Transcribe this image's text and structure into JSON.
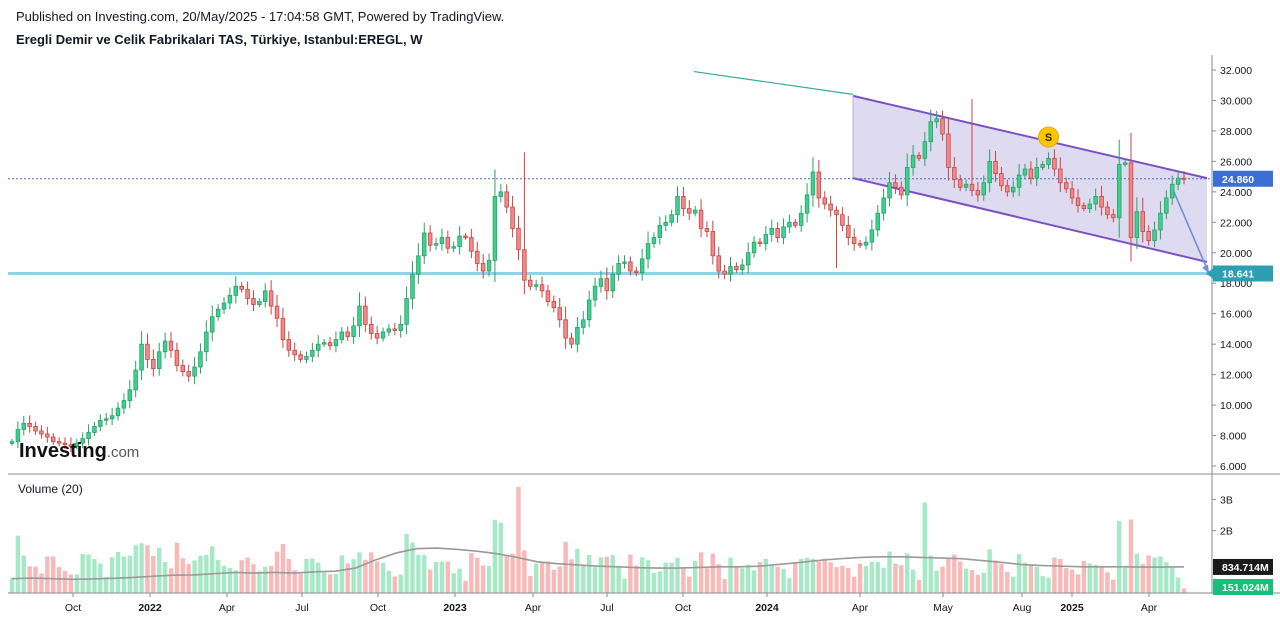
{
  "header": {
    "published_line": "Published on Investing.com, 20/May/2025 - 17:04:58 GMT, Powered by TradingView.",
    "instrument_line": "Eregli Demir ve Celik Fabrikalari TAS, Türkiye, Istanbul:EREGL, W"
  },
  "logo": {
    "main": "Investing",
    "suffix": ".com"
  },
  "colors": {
    "up_candle": "#26a269",
    "up_candle_fill": "#3fcf8e",
    "down_candle": "#c94444",
    "down_candle_fill": "#f08a8a",
    "vol_up": "#a6e9c6",
    "vol_down": "#f8b9b9",
    "vol_ma": "#9a9a9a",
    "support_line": "#8fd3e8",
    "channel_fill": "#d6d2ee",
    "channel_line": "#7c4fc4",
    "trend_line": "#2fae97",
    "price_badge": "#3c6fd6",
    "support_badge": "#2d9fb3",
    "vol_badge1": "#1b1b1b",
    "vol_badge2": "#17c07a",
    "marker": "#f7c600"
  },
  "chart_data": {
    "type": "candlestick",
    "price_panel": {
      "y_axis_ticks": [
        "32.000",
        "30.000",
        "28.000",
        "26.000",
        "24.000",
        "22.000",
        "20.000",
        "18.000",
        "16.000",
        "14.000",
        "12.000",
        "10.000",
        "8.000",
        "6.000"
      ],
      "ylim": [
        6,
        33
      ],
      "current_price": "24.860",
      "support_level": "18.641",
      "support_value": 18.641,
      "current_value": 24.86,
      "marker_label": "S",
      "marker_value": 27.6,
      "weekly_closes": [
        7.6,
        8.4,
        8.8,
        8.6,
        8.3,
        8.1,
        7.9,
        7.6,
        7.5,
        7.4,
        7.3,
        7.5,
        7.8,
        8.2,
        8.6,
        9.0,
        9.1,
        9.3,
        9.8,
        10.3,
        11.0,
        12.3,
        14.0,
        13.0,
        12.4,
        13.5,
        14.2,
        13.6,
        12.6,
        12.2,
        11.9,
        12.5,
        13.5,
        14.8,
        15.8,
        16.3,
        16.7,
        17.2,
        17.8,
        17.6,
        17.0,
        16.6,
        16.8,
        17.5,
        16.5,
        15.7,
        14.3,
        13.6,
        13.3,
        13.0,
        13.2,
        13.6,
        14.0,
        14.1,
        13.9,
        14.3,
        14.8,
        14.5,
        15.2,
        16.5,
        15.3,
        14.7,
        14.4,
        14.8,
        15.0,
        14.9,
        15.3,
        17.0,
        18.6,
        19.8,
        21.3,
        20.5,
        20.6,
        21.0,
        20.3,
        20.4,
        21.1,
        21.0,
        20.1,
        19.3,
        18.8,
        19.5,
        23.7,
        24.0,
        23.0,
        21.6,
        20.2,
        18.2,
        17.8,
        17.9,
        17.5,
        16.8,
        16.4,
        15.6,
        14.4,
        14.0,
        15.1,
        15.6,
        16.9,
        17.8,
        18.3,
        17.5,
        18.6,
        19.3,
        19.4,
        18.8,
        18.7,
        19.6,
        20.6,
        21.0,
        21.8,
        22.0,
        22.5,
        23.7,
        22.9,
        22.6,
        22.8,
        21.6,
        21.4,
        19.8,
        18.8,
        18.6,
        19.1,
        18.9,
        19.2,
        20.0,
        20.7,
        20.6,
        21.2,
        21.6,
        21.0,
        21.7,
        22.0,
        21.8,
        22.6,
        23.8,
        25.3,
        23.6,
        23.2,
        22.8,
        22.5,
        21.8,
        21.0,
        20.6,
        20.5,
        20.7,
        21.5,
        22.6,
        23.6,
        24.6,
        24.3,
        23.8,
        25.6,
        26.4,
        26.2,
        27.3,
        28.6,
        28.8,
        27.8,
        25.6,
        24.8,
        24.3,
        24.5,
        24.1,
        23.8,
        24.6,
        26.0,
        25.2,
        24.4,
        24.0,
        24.3,
        25.1,
        25.5,
        24.9,
        25.6,
        25.8,
        26.2,
        25.5,
        24.6,
        24.2,
        23.6,
        23.1,
        22.9,
        23.2,
        23.7,
        23.0,
        22.5,
        22.3,
        25.8,
        25.9,
        21.0,
        22.7,
        21.4,
        20.8,
        21.5,
        22.6,
        23.6,
        24.5,
        24.9,
        24.86
      ],
      "trend_line": {
        "start_value": 31.9,
        "end_value": 30.4
      },
      "channel": {
        "upper": [
          30.3,
          24.9
        ],
        "lower": [
          24.9,
          19.4
        ],
        "projection_target": 18.641
      }
    },
    "volume_panel": {
      "label": "Volume (20)",
      "y_axis_ticks": [
        "3B",
        "2B"
      ],
      "ylim": [
        0,
        3.3
      ],
      "unit": "B",
      "ma_value_label": "834.714M",
      "last_volume_label": "151.024M",
      "ma_value": 0.835,
      "last_volume": 0.151,
      "ma_curve": [
        0.46,
        0.48,
        0.46,
        0.44,
        0.45,
        0.47,
        0.5,
        0.54,
        0.57,
        0.58,
        0.62,
        0.66,
        0.64,
        0.66,
        0.64,
        0.68,
        0.7,
        0.8,
        1.06,
        1.28,
        1.42,
        1.44,
        1.4,
        1.34,
        1.26,
        1.14,
        1.0,
        0.94,
        0.9,
        0.86,
        0.84,
        0.81,
        0.8,
        0.8,
        0.82,
        0.84,
        0.84,
        0.86,
        0.92,
        0.98,
        1.05,
        1.1,
        1.14,
        1.16,
        1.16,
        1.14,
        1.12,
        1.1,
        1.04,
        0.98,
        0.91,
        0.88,
        0.86,
        0.84,
        0.84,
        0.84,
        0.83,
        0.83,
        0.84
      ]
    },
    "x_axis_ticks": [
      "Oct",
      "2022",
      "Apr",
      "Jul",
      "Oct",
      "2023",
      "Apr",
      "Jul",
      "Oct",
      "2024",
      "Apr",
      "May",
      "Aug",
      "2025",
      "Apr"
    ],
    "x_axis_positions": [
      73,
      150,
      227,
      302,
      378,
      455,
      533,
      607,
      683,
      767,
      860,
      943,
      1022,
      1072,
      1149
    ]
  }
}
